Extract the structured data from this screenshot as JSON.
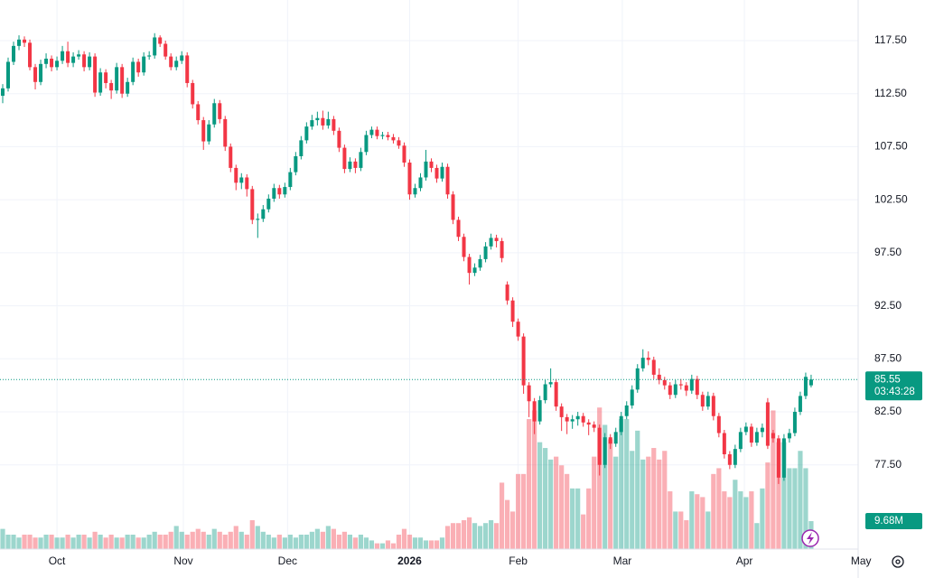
{
  "chart_data": {
    "type": "candlestick",
    "ohlc": [
      [
        112.3,
        113.4,
        111.6,
        113.0
      ],
      [
        113.0,
        115.9,
        112.7,
        115.5
      ],
      [
        115.5,
        117.4,
        115.2,
        117.0
      ],
      [
        117.0,
        118.0,
        116.6,
        117.6
      ],
      [
        117.6,
        117.9,
        116.9,
        117.3
      ],
      [
        117.3,
        117.6,
        114.7,
        115.0
      ],
      [
        115.0,
        115.3,
        112.9,
        113.6
      ],
      [
        113.6,
        115.7,
        113.3,
        115.3
      ],
      [
        115.3,
        116.3,
        114.9,
        115.8
      ],
      [
        115.8,
        116.1,
        114.6,
        115.0
      ],
      [
        115.0,
        116.0,
        114.7,
        115.6
      ],
      [
        115.6,
        117.0,
        115.3,
        116.5
      ],
      [
        116.5,
        117.4,
        115.0,
        115.4
      ],
      [
        115.4,
        116.4,
        115.0,
        116.0
      ],
      [
        116.0,
        116.6,
        115.7,
        116.2
      ],
      [
        116.2,
        116.5,
        114.6,
        115.0
      ],
      [
        115.0,
        116.4,
        114.7,
        116.0
      ],
      [
        116.0,
        116.3,
        112.2,
        112.6
      ],
      [
        112.6,
        114.9,
        112.3,
        114.5
      ],
      [
        114.5,
        114.8,
        113.0,
        113.5
      ],
      [
        113.5,
        113.8,
        112.0,
        112.8
      ],
      [
        112.8,
        115.4,
        112.5,
        115.0
      ],
      [
        115.0,
        115.3,
        112.1,
        112.5
      ],
      [
        112.5,
        114.0,
        112.2,
        113.6
      ],
      [
        113.6,
        115.9,
        113.3,
        115.5
      ],
      [
        115.5,
        115.8,
        114.1,
        114.5
      ],
      [
        114.5,
        116.4,
        114.2,
        116.0
      ],
      [
        116.0,
        116.5,
        115.7,
        116.1
      ],
      [
        116.1,
        118.2,
        115.8,
        117.8
      ],
      [
        117.8,
        118.0,
        116.9,
        117.2
      ],
      [
        117.2,
        117.5,
        115.7,
        116.0
      ],
      [
        116.0,
        116.3,
        114.7,
        115.0
      ],
      [
        115.0,
        116.0,
        114.7,
        115.6
      ],
      [
        115.6,
        116.5,
        115.3,
        116.1
      ],
      [
        116.1,
        116.4,
        113.1,
        113.5
      ],
      [
        113.5,
        113.8,
        111.1,
        111.5
      ],
      [
        111.5,
        111.8,
        109.6,
        110.0
      ],
      [
        110.0,
        110.3,
        107.2,
        108.0
      ],
      [
        108.0,
        110.0,
        107.7,
        109.6
      ],
      [
        109.6,
        112.0,
        109.3,
        111.6
      ],
      [
        111.6,
        111.9,
        109.7,
        110.1
      ],
      [
        110.1,
        110.4,
        107.1,
        107.5
      ],
      [
        107.5,
        107.8,
        105.1,
        105.5
      ],
      [
        105.5,
        105.8,
        103.4,
        104.1
      ],
      [
        104.1,
        105.0,
        103.5,
        104.6
      ],
      [
        104.6,
        104.9,
        102.8,
        103.5
      ],
      [
        103.5,
        103.8,
        100.2,
        100.6
      ],
      [
        100.6,
        101.2,
        98.9,
        100.7
      ],
      [
        100.7,
        102.0,
        100.4,
        101.6
      ],
      [
        101.6,
        103.0,
        101.3,
        102.6
      ],
      [
        102.6,
        104.0,
        102.3,
        103.6
      ],
      [
        103.6,
        103.9,
        102.6,
        103.0
      ],
      [
        103.0,
        104.1,
        102.7,
        103.7
      ],
      [
        103.7,
        105.5,
        103.4,
        105.1
      ],
      [
        105.1,
        107.0,
        104.8,
        106.6
      ],
      [
        106.6,
        108.5,
        106.3,
        108.1
      ],
      [
        108.1,
        109.8,
        107.8,
        109.4
      ],
      [
        109.4,
        110.5,
        109.1,
        110.0
      ],
      [
        110.0,
        110.8,
        109.5,
        110.2
      ],
      [
        110.2,
        110.9,
        109.1,
        109.5
      ],
      [
        109.5,
        110.8,
        109.2,
        110.1
      ],
      [
        110.1,
        110.4,
        108.6,
        109.0
      ],
      [
        109.0,
        109.3,
        107.0,
        107.4
      ],
      [
        107.4,
        107.7,
        105.0,
        105.4
      ],
      [
        105.4,
        106.5,
        105.1,
        106.1
      ],
      [
        106.1,
        106.4,
        105.0,
        105.5
      ],
      [
        105.5,
        107.4,
        105.2,
        107.0
      ],
      [
        107.0,
        109.0,
        106.7,
        108.6
      ],
      [
        108.6,
        109.4,
        108.3,
        109.1
      ],
      [
        109.1,
        109.4,
        108.2,
        108.5
      ],
      [
        108.5,
        108.9,
        108.2,
        108.6
      ],
      [
        108.6,
        108.9,
        108.1,
        108.4
      ],
      [
        108.4,
        108.7,
        107.8,
        108.1
      ],
      [
        108.1,
        108.4,
        107.3,
        107.6
      ],
      [
        107.6,
        107.9,
        105.6,
        106.0
      ],
      [
        106.0,
        106.3,
        102.5,
        103.0
      ],
      [
        103.0,
        104.0,
        102.7,
        103.6
      ],
      [
        103.6,
        105.0,
        103.3,
        104.6
      ],
      [
        104.6,
        107.2,
        104.3,
        106.1
      ],
      [
        106.1,
        106.4,
        105.1,
        105.5
      ],
      [
        105.5,
        105.8,
        104.1,
        104.5
      ],
      [
        104.5,
        106.0,
        104.2,
        105.6
      ],
      [
        105.6,
        105.9,
        102.6,
        103.0
      ],
      [
        103.0,
        103.3,
        100.2,
        100.6
      ],
      [
        100.6,
        100.9,
        98.6,
        99.0
      ],
      [
        99.0,
        99.3,
        96.7,
        97.1
      ],
      [
        97.1,
        97.4,
        94.5,
        95.6
      ],
      [
        95.6,
        96.5,
        95.3,
        96.1
      ],
      [
        96.1,
        97.3,
        95.8,
        96.9
      ],
      [
        96.9,
        98.5,
        96.6,
        98.1
      ],
      [
        98.1,
        99.3,
        97.8,
        98.9
      ],
      [
        98.9,
        99.2,
        98.0,
        98.6
      ],
      [
        98.6,
        98.9,
        96.6,
        97.0
      ],
      [
        94.5,
        94.8,
        92.6,
        93.0
      ],
      [
        93.0,
        93.3,
        90.5,
        91.0
      ],
      [
        91.0,
        91.3,
        89.2,
        89.6
      ],
      [
        89.6,
        89.9,
        84.2,
        85.0
      ],
      [
        85.0,
        85.3,
        82.0,
        83.5
      ],
      [
        83.5,
        83.8,
        80.4,
        81.6
      ],
      [
        81.6,
        84.0,
        81.3,
        83.6
      ],
      [
        83.6,
        85.5,
        83.3,
        85.1
      ],
      [
        85.1,
        86.6,
        84.8,
        85.3
      ],
      [
        85.3,
        85.6,
        82.6,
        83.0
      ],
      [
        83.0,
        83.3,
        80.7,
        82.0
      ],
      [
        82.0,
        82.3,
        80.4,
        81.6
      ],
      [
        81.6,
        82.2,
        80.9,
        81.8
      ],
      [
        81.8,
        82.5,
        81.2,
        82.1
      ],
      [
        82.1,
        82.4,
        81.1,
        81.5
      ],
      [
        81.5,
        81.8,
        80.3,
        81.3
      ],
      [
        81.3,
        81.6,
        80.6,
        81.0
      ],
      [
        81.0,
        81.3,
        76.5,
        77.5
      ],
      [
        77.5,
        80.5,
        77.2,
        80.1
      ],
      [
        80.1,
        80.4,
        79.0,
        79.5
      ],
      [
        79.5,
        81.0,
        79.2,
        80.6
      ],
      [
        80.6,
        82.5,
        80.3,
        82.1
      ],
      [
        82.1,
        83.5,
        81.8,
        83.1
      ],
      [
        83.1,
        85.0,
        82.8,
        84.6
      ],
      [
        84.6,
        87.0,
        84.3,
        86.6
      ],
      [
        86.6,
        88.4,
        86.3,
        87.6
      ],
      [
        87.6,
        88.2,
        86.9,
        87.4
      ],
      [
        87.4,
        87.7,
        85.6,
        86.0
      ],
      [
        86.0,
        86.6,
        85.1,
        85.5
      ],
      [
        85.5,
        85.8,
        84.6,
        85.0
      ],
      [
        85.0,
        85.3,
        83.7,
        84.1
      ],
      [
        84.1,
        85.5,
        83.8,
        85.1
      ],
      [
        85.1,
        85.6,
        84.6,
        85.0
      ],
      [
        85.0,
        85.3,
        84.0,
        84.5
      ],
      [
        84.5,
        86.0,
        84.2,
        85.6
      ],
      [
        85.6,
        85.9,
        83.7,
        84.1
      ],
      [
        84.1,
        84.4,
        82.6,
        83.0
      ],
      [
        83.0,
        84.4,
        82.7,
        84.0
      ],
      [
        84.0,
        84.3,
        81.7,
        82.1
      ],
      [
        82.1,
        82.4,
        80.1,
        80.5
      ],
      [
        80.5,
        80.8,
        78.1,
        78.5
      ],
      [
        78.5,
        78.8,
        77.1,
        77.5
      ],
      [
        77.5,
        79.4,
        77.2,
        79.0
      ],
      [
        79.0,
        81.0,
        78.7,
        80.6
      ],
      [
        80.6,
        81.5,
        80.3,
        81.1
      ],
      [
        81.1,
        81.4,
        79.2,
        79.6
      ],
      [
        79.6,
        81.0,
        79.3,
        80.6
      ],
      [
        80.6,
        81.4,
        80.1,
        81.0
      ],
      [
        83.4,
        83.8,
        79.0,
        79.3
      ],
      [
        80.5,
        80.8,
        79.6,
        80.0
      ],
      [
        80.0,
        80.3,
        75.7,
        76.3
      ],
      [
        76.3,
        80.4,
        76.0,
        80.0
      ],
      [
        80.0,
        80.9,
        79.6,
        80.5
      ],
      [
        80.5,
        82.9,
        80.2,
        82.5
      ],
      [
        82.5,
        84.4,
        82.2,
        84.0
      ],
      [
        84.0,
        86.2,
        83.7,
        85.8
      ],
      [
        85.0,
        86.0,
        84.8,
        85.55
      ]
    ],
    "volume": [
      7,
      5,
      5,
      4,
      5,
      5,
      4,
      4,
      5,
      5,
      4,
      4,
      5,
      4,
      5,
      5,
      4,
      6,
      5,
      4,
      5,
      4,
      4,
      5,
      5,
      4,
      4,
      5,
      6,
      5,
      5,
      6,
      8,
      6,
      5,
      6,
      7,
      6,
      5,
      7,
      6,
      5,
      6,
      8,
      6,
      5,
      10,
      8,
      6,
      5,
      4,
      5,
      4,
      5,
      4,
      5,
      5,
      6,
      7,
      6,
      8,
      7,
      5,
      6,
      5,
      4,
      5,
      4,
      3,
      2,
      2,
      3,
      2,
      5,
      7,
      5,
      4,
      4,
      3,
      3,
      3,
      4,
      8,
      9,
      9,
      10,
      11,
      9,
      8,
      9,
      10,
      9,
      23,
      17,
      13,
      26,
      26,
      45,
      48,
      37,
      35,
      31,
      32,
      29,
      26,
      21,
      21,
      12,
      21,
      32,
      49,
      43,
      38,
      32,
      45,
      45,
      34,
      41,
      31,
      32,
      35,
      31,
      34,
      20,
      13,
      13,
      10,
      20,
      19,
      18,
      13,
      26,
      28,
      20,
      18,
      24,
      20,
      18,
      20,
      9,
      21,
      30,
      48,
      37,
      37,
      28,
      28,
      34,
      28,
      9.68
    ],
    "volume_last_label": "9.68M",
    "up_color": "#089981",
    "down_color": "#f23645",
    "ylim": [
      69.56,
      121.33
    ],
    "volume_ylim": [
      0,
      176
    ],
    "xlim": [
      -0.5,
      157.9
    ],
    "yticks": [
      {
        "value": 117.5,
        "label": "117.50"
      },
      {
        "value": 112.5,
        "label": "112.50"
      },
      {
        "value": 107.5,
        "label": "107.50"
      },
      {
        "value": 102.5,
        "label": "102.50"
      },
      {
        "value": 97.5,
        "label": "97.50"
      },
      {
        "value": 92.5,
        "label": "92.50"
      },
      {
        "value": 87.5,
        "label": "87.50"
      },
      {
        "value": 82.5,
        "label": "82.50"
      },
      {
        "value": 77.5,
        "label": "77.50"
      }
    ],
    "xticks": [
      {
        "value": 10,
        "label": "Oct"
      },
      {
        "value": 33.3,
        "label": "Nov"
      },
      {
        "value": 52.5,
        "label": "Dec"
      },
      {
        "value": 75,
        "label": "2026"
      },
      {
        "value": 95,
        "label": "Feb"
      },
      {
        "value": 114.2,
        "label": "Mar"
      },
      {
        "value": 136.7,
        "label": "Apr"
      },
      {
        "value": 158.2,
        "label": "May"
      }
    ],
    "last_price": 85.55,
    "countdown": "03:43:28",
    "grid": true
  }
}
